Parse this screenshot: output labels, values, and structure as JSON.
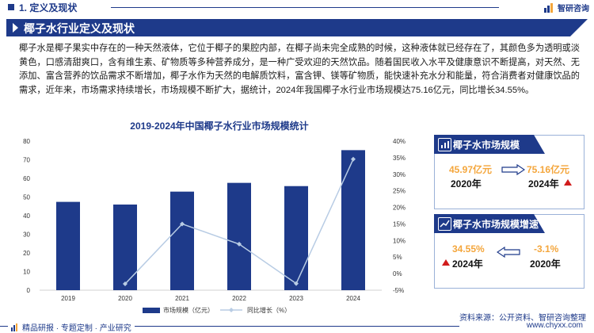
{
  "header": {
    "section": "1. 定义及现状",
    "logo": "智研咨询"
  },
  "banner": {
    "title": "椰子水行业定义及现状"
  },
  "body": {
    "paragraph": "椰子水是椰子果实中存在的一种天然液体，它位于椰子的果腔内部，在椰子尚未完全成熟的时候，这种液体就已经存在了，其颜色多为透明或淡黄色，口感清甜爽口，含有维生素、矿物质等多种营养成分，是一种广受欢迎的天然饮品。随着国民收入水平及健康意识不断提高，对天然、无添加、富含营养的饮品需求不断增加，椰子水作为天然的电解质饮料，富含钾、镁等矿物质，能快速补充水分和能量，符合消费者对健康饮品的需求，近年来，市场需求持续增长，市场规模不断扩大，据统计，2024年我国椰子水行业市场规模达75.16亿元，同比增长34.55%。"
  },
  "chart_data": {
    "type": "bar",
    "title": "2019-2024年中国椰子水行业市场规模统计",
    "categories": [
      "2019",
      "2020",
      "2021",
      "2022",
      "2023",
      "2024"
    ],
    "series": [
      {
        "name": "市场规模（亿元）",
        "type": "bar",
        "axis": "left",
        "color": "#1e3a8a",
        "values": [
          47.4,
          45.97,
          52.9,
          57.6,
          55.86,
          75.16
        ]
      },
      {
        "name": "同比增长（%）",
        "type": "line",
        "axis": "right",
        "color": "#b8cce4",
        "values": [
          null,
          -3.1,
          15.0,
          8.9,
          -3.0,
          34.55
        ]
      }
    ],
    "ylim_left": [
      0,
      80
    ],
    "yticks_left": [
      "0",
      "10",
      "20",
      "30",
      "40",
      "50",
      "60",
      "70",
      "80"
    ],
    "ylim_right": [
      -5,
      40
    ],
    "yticks_right": [
      "-5%",
      "0%",
      "5%",
      "10%",
      "15%",
      "20%",
      "25%",
      "30%",
      "35%",
      "40%"
    ],
    "grid": false,
    "legend": "bottom"
  },
  "cards": {
    "scale": {
      "title": "椰子水市场规模",
      "from_value": "45.97亿元",
      "from_year": "2020年",
      "to_value": "75.16亿元",
      "to_year": "2024年"
    },
    "growth": {
      "title": "椰子水市场规模增速",
      "left_value": "34.55%",
      "left_year": "2024年",
      "right_value": "-3.1%",
      "right_year": "2020年"
    }
  },
  "source": "资料来源：公开资料、智研咨询整理",
  "footer": {
    "left": "精品研报 · 专题定制 · 产业研究",
    "right": "www.chyxx.com"
  },
  "colors": {
    "primary": "#1e3a8a",
    "accent": "#f4a63c",
    "up": "#d11c1c",
    "line": "#b8cce4"
  }
}
